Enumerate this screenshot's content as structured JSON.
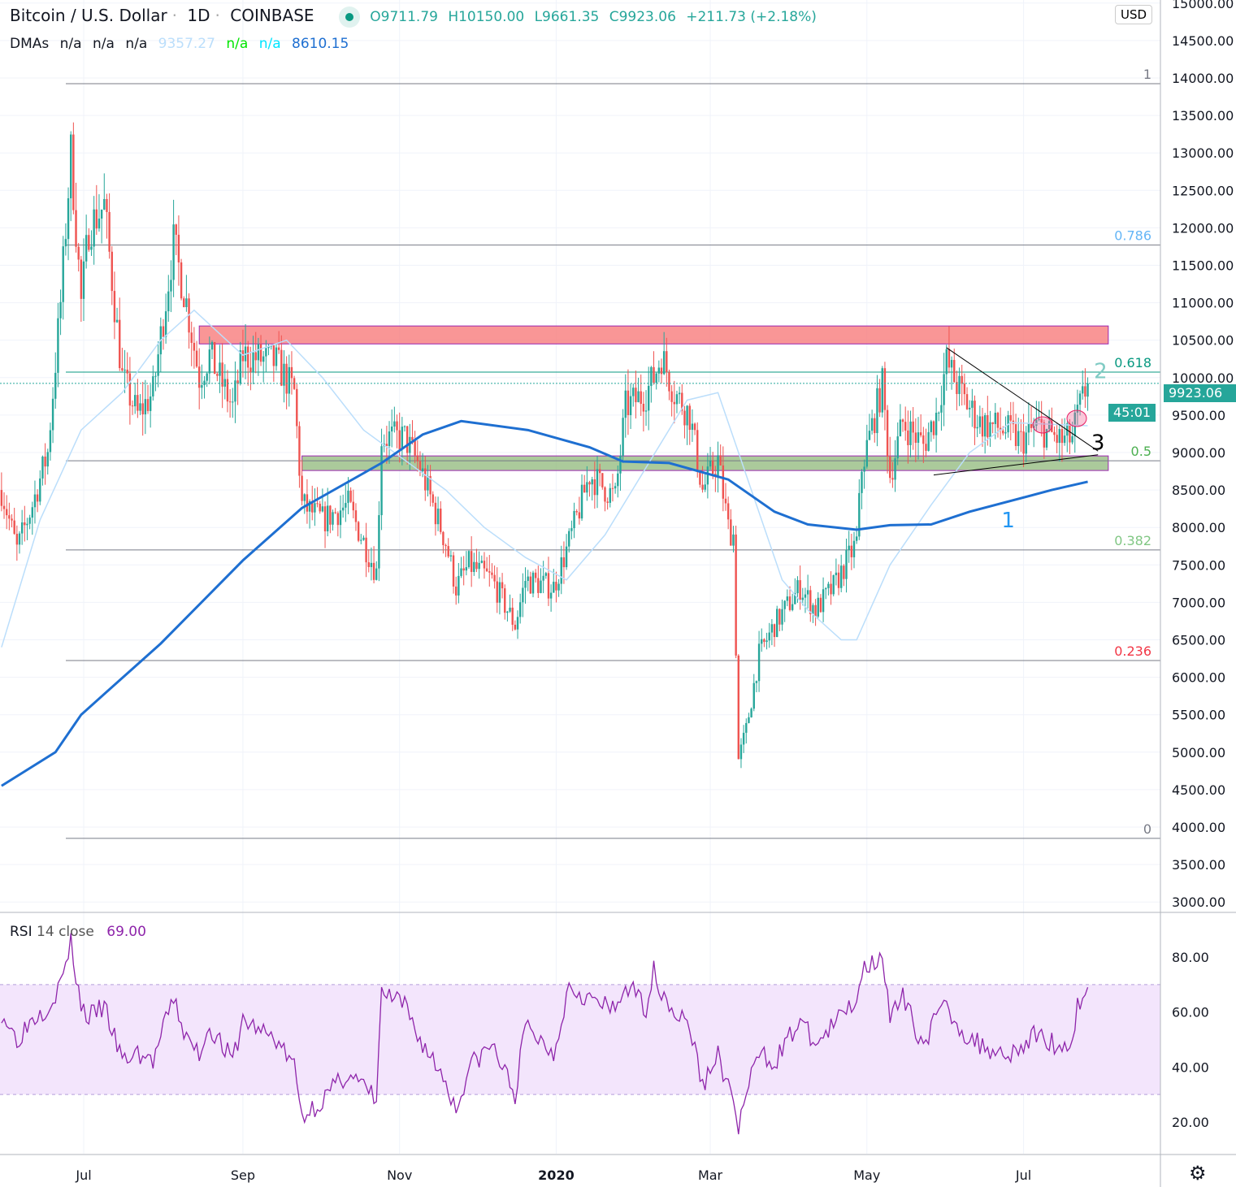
{
  "header": {
    "symbol": "Bitcoin / U.S. Dollar",
    "interval": "1D",
    "exchange": "COINBASE",
    "open": "O9711.79",
    "high": "H10150.00",
    "low": "L9661.35",
    "close": "C9923.06",
    "change": "+211.73 (+2.18%)"
  },
  "dmas": {
    "label": "DMAs",
    "v1": "n/a",
    "v2": "n/a",
    "v3": "n/a",
    "v4": "9357.27",
    "v5": "n/a",
    "v6": "n/a",
    "v7": "8610.15"
  },
  "rsi_legend": {
    "label": "RSI",
    "params": "14 close",
    "value": "69.00"
  },
  "currency": "USD",
  "price_tag": "9923.06",
  "countdown": "45:01",
  "colors": {
    "up": "#26a69a",
    "down": "#ef5350",
    "ma200": "#1e6fd1",
    "ma50": "#bbdefb",
    "rsi": "#8e24aa",
    "resistance_zone": "#f77c7c",
    "support_zone": "#8fb87a"
  },
  "chart_data": [
    {
      "type": "candlestick",
      "ylim": [
        3000,
        15000
      ],
      "yticks": [
        "15000.00",
        "14500.00",
        "14000.00",
        "13500.00",
        "13000.00",
        "12500.00",
        "12000.00",
        "11500.00",
        "11000.00",
        "10500.00",
        "10000.00",
        "9500.00",
        "9000.00",
        "8500.00",
        "8000.00",
        "7500.00",
        "7000.00",
        "6500.00",
        "6000.00",
        "5500.00",
        "5000.00",
        "4500.00",
        "4000.00",
        "3500.00",
        "3000.00"
      ],
      "xticks": [
        {
          "date": "2019-07-01",
          "label": "Jul"
        },
        {
          "date": "2019-09-01",
          "label": "Sep"
        },
        {
          "date": "2019-11-01",
          "label": "Nov"
        },
        {
          "date": "2020-01-01",
          "label": "2020"
        },
        {
          "date": "2020-03-01",
          "label": "Mar"
        },
        {
          "date": "2020-05-01",
          "label": "May"
        },
        {
          "date": "2020-07-01",
          "label": "Jul"
        }
      ],
      "close_path": [
        [
          "2019-05-30",
          8500
        ],
        [
          "2019-06-05",
          7700
        ],
        [
          "2019-06-11",
          8300
        ],
        [
          "2019-06-17",
          9000
        ],
        [
          "2019-06-22",
          11000
        ],
        [
          "2019-06-26",
          13000
        ],
        [
          "2019-06-30",
          11000
        ],
        [
          "2019-07-03",
          12000
        ],
        [
          "2019-07-09",
          12300
        ],
        [
          "2019-07-16",
          10000
        ],
        [
          "2019-07-22",
          9500
        ],
        [
          "2019-07-28",
          9800
        ],
        [
          "2019-08-05",
          11800
        ],
        [
          "2019-08-10",
          11000
        ],
        [
          "2019-08-15",
          10000
        ],
        [
          "2019-08-19",
          10300
        ],
        [
          "2019-08-28",
          9600
        ],
        [
          "2019-09-01",
          10300
        ],
        [
          "2019-09-14",
          10200
        ],
        [
          "2019-09-21",
          9800
        ],
        [
          "2019-09-24",
          8300
        ],
        [
          "2019-10-02",
          8100
        ],
        [
          "2019-10-12",
          8300
        ],
        [
          "2019-10-23",
          7400
        ],
        [
          "2019-10-25",
          9200
        ],
        [
          "2019-11-03",
          9200
        ],
        [
          "2019-11-09",
          8800
        ],
        [
          "2019-11-19",
          7800
        ],
        [
          "2019-11-23",
          7200
        ],
        [
          "2019-11-28",
          7500
        ],
        [
          "2019-12-07",
          7300
        ],
        [
          "2019-12-16",
          6700
        ],
        [
          "2019-12-20",
          7300
        ],
        [
          "2019-12-31",
          7200
        ],
        [
          "2020-01-06",
          7800
        ],
        [
          "2020-01-14",
          8700
        ],
        [
          "2020-01-24",
          8400
        ],
        [
          "2020-01-28",
          9600
        ],
        [
          "2020-02-05",
          9800
        ],
        [
          "2020-02-08",
          10000
        ],
        [
          "2020-02-11",
          10300
        ],
        [
          "2020-02-16",
          9800
        ],
        [
          "2020-02-22",
          9500
        ],
        [
          "2020-02-27",
          8500
        ],
        [
          "2020-03-04",
          8900
        ],
        [
          "2020-03-08",
          8000
        ],
        [
          "2020-03-10",
          7900
        ],
        [
          "2020-03-12",
          4900
        ],
        [
          "2020-03-15",
          5300
        ],
        [
          "2020-03-20",
          6300
        ],
        [
          "2020-03-26",
          6700
        ],
        [
          "2020-04-05",
          7200
        ],
        [
          "2020-04-11",
          6900
        ],
        [
          "2020-04-18",
          7200
        ],
        [
          "2020-04-24",
          7600
        ],
        [
          "2020-04-27",
          7800
        ],
        [
          "2020-04-29",
          8800
        ],
        [
          "2020-05-07",
          9900
        ],
        [
          "2020-05-10",
          8700
        ],
        [
          "2020-05-15",
          9400
        ],
        [
          "2020-05-23",
          9100
        ],
        [
          "2020-05-28",
          9500
        ],
        [
          "2020-06-01",
          10200
        ],
        [
          "2020-06-08",
          9700
        ],
        [
          "2020-06-14",
          9400
        ],
        [
          "2020-06-24",
          9300
        ],
        [
          "2020-06-30",
          9150
        ],
        [
          "2020-07-06",
          9350
        ],
        [
          "2020-07-16",
          9150
        ],
        [
          "2020-07-20",
          9200
        ],
        [
          "2020-07-22",
          9500
        ],
        [
          "2020-07-26",
          9923.06
        ]
      ],
      "ma200": [
        [
          "2019-05-30",
          4550
        ],
        [
          "2019-06-20",
          5000
        ],
        [
          "2019-06-30",
          5500
        ],
        [
          "2019-07-31",
          6450
        ],
        [
          "2019-09-01",
          7560
        ],
        [
          "2019-09-24",
          8260
        ],
        [
          "2019-10-25",
          8860
        ],
        [
          "2019-11-10",
          9240
        ],
        [
          "2019-11-25",
          9420
        ],
        [
          "2019-12-21",
          9300
        ],
        [
          "2020-01-14",
          9070
        ],
        [
          "2020-01-27",
          8880
        ],
        [
          "2020-02-14",
          8860
        ],
        [
          "2020-03-08",
          8640
        ],
        [
          "2020-03-26",
          8210
        ],
        [
          "2020-04-08",
          8040
        ],
        [
          "2020-04-27",
          7970
        ],
        [
          "2020-05-10",
          8030
        ],
        [
          "2020-05-26",
          8040
        ],
        [
          "2020-06-10",
          8210
        ],
        [
          "2020-07-12",
          8500
        ],
        [
          "2020-07-26",
          8610.15
        ]
      ],
      "ma50": [
        [
          "2019-05-30",
          6400
        ],
        [
          "2019-06-14",
          8100
        ],
        [
          "2019-06-30",
          9300
        ],
        [
          "2019-07-16",
          9800
        ],
        [
          "2019-07-31",
          10500
        ],
        [
          "2019-08-13",
          10900
        ],
        [
          "2019-09-01",
          10300
        ],
        [
          "2019-09-18",
          10500
        ],
        [
          "2019-10-02",
          10000
        ],
        [
          "2019-10-18",
          9300
        ],
        [
          "2019-11-03",
          8900
        ],
        [
          "2019-11-19",
          8500
        ],
        [
          "2019-12-04",
          8000
        ],
        [
          "2019-12-20",
          7600
        ],
        [
          "2020-01-05",
          7300
        ],
        [
          "2020-01-20",
          7900
        ],
        [
          "2020-02-05",
          8800
        ],
        [
          "2020-02-21",
          9700
        ],
        [
          "2020-03-04",
          9800
        ],
        [
          "2020-03-17",
          8500
        ],
        [
          "2020-03-29",
          7300
        ],
        [
          "2020-04-08",
          6900
        ],
        [
          "2020-04-21",
          6500
        ],
        [
          "2020-04-27",
          6500
        ],
        [
          "2020-05-10",
          7500
        ],
        [
          "2020-05-26",
          8300
        ],
        [
          "2020-06-10",
          9000
        ],
        [
          "2020-06-26",
          9400
        ],
        [
          "2020-07-26",
          9357.27
        ]
      ],
      "fib_levels": [
        {
          "label": "1",
          "price": 13924,
          "color": "#787b86"
        },
        {
          "label": "0.786",
          "price": 11770,
          "color": "#64b5f6"
        },
        {
          "label": "0.618",
          "price": 10074,
          "color": "#089981"
        },
        {
          "label": "0.5",
          "price": 8890,
          "color": "#4caf50"
        },
        {
          "label": "0.382",
          "price": 7700,
          "color": "#81c784"
        },
        {
          "label": "0.236",
          "price": 6224,
          "color": "#f23645"
        },
        {
          "label": "0",
          "price": 3850,
          "color": "#787b86"
        }
      ],
      "zones": [
        {
          "name": "resistance",
          "from": "2019-08-15",
          "to": "2020-08-03",
          "low": 10450,
          "high": 10690
        },
        {
          "name": "support",
          "from": "2019-09-24",
          "to": "2020-08-03",
          "low": 8760,
          "high": 8955
        }
      ],
      "triangle": [
        [
          [
            "2020-06-01",
            10400
          ],
          [
            "2020-07-30",
            9020
          ]
        ],
        [
          [
            "2020-05-27",
            8700
          ],
          [
            "2020-07-30",
            8970
          ]
        ]
      ],
      "annotations": [
        {
          "text": "1",
          "date": "2020-06-25",
          "price": 8000,
          "color": "#2196f3"
        },
        {
          "text": "2",
          "date": "2020-07-31",
          "price": 9990,
          "color": "#80cbc4"
        },
        {
          "text": "3",
          "date": "2020-07-30",
          "price": 9040,
          "color": "#000000"
        }
      ]
    },
    {
      "type": "line",
      "name": "RSI",
      "ylim": [
        10,
        90
      ],
      "yticks": [
        "80.00",
        "60.00",
        "40.00",
        "20.00"
      ],
      "bands": [
        30,
        70
      ],
      "rsi_path_from": "close_path",
      "current": 69.0
    }
  ]
}
